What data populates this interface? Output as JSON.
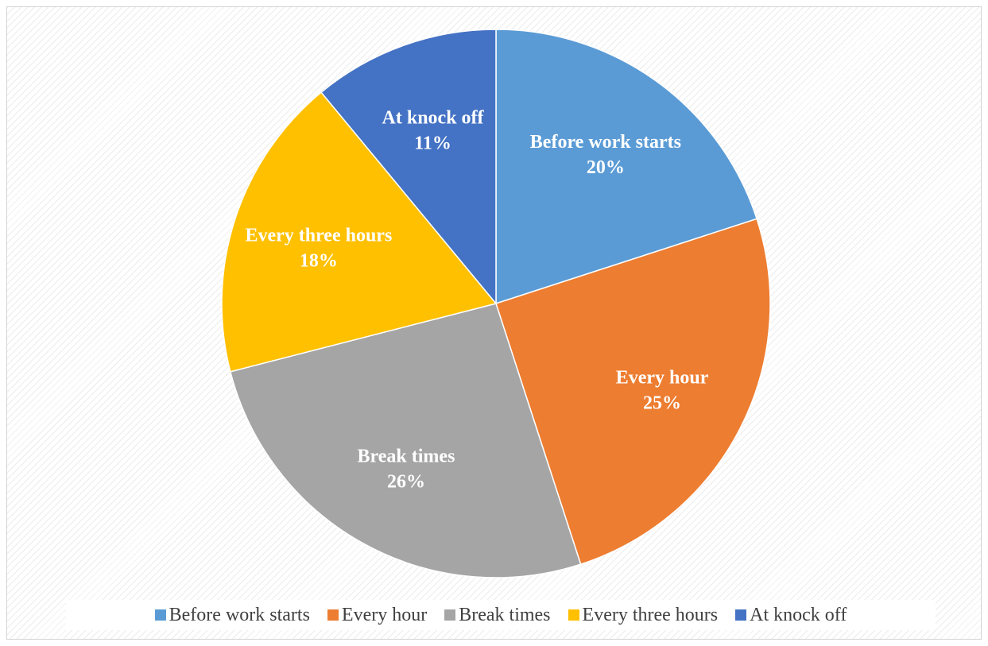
{
  "chart_data": {
    "type": "pie",
    "title": "",
    "categories": [
      "Before work starts",
      "Every hour",
      "Break times",
      "Every three hours",
      "At knock off"
    ],
    "values": [
      20,
      25,
      26,
      18,
      11
    ],
    "labels": [
      "20%",
      "25%",
      "26%",
      "18%",
      "11%"
    ],
    "colors": [
      "#5b9bd5",
      "#ed7d31",
      "#a5a5a5",
      "#ffc000",
      "#4472c4"
    ],
    "start_angle": "12 o'clock",
    "direction": "clockwise",
    "legend_position": "bottom"
  }
}
